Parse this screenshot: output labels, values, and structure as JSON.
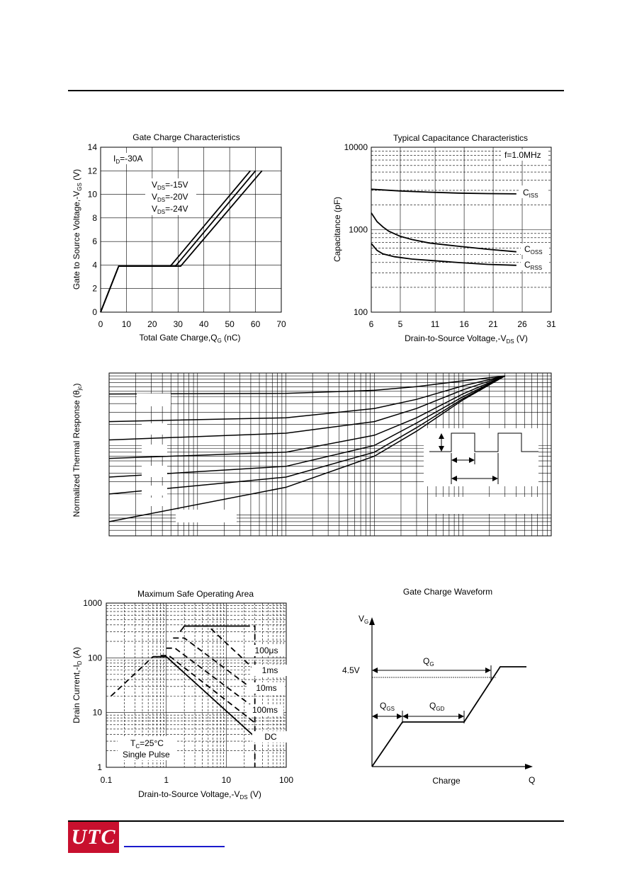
{
  "chart_data": [
    {
      "type": "line",
      "title": "Gate Charge Characteristics",
      "xlabel": "Total Gate Charge,Q",
      "xlabel_sub": "G",
      "xlabel_tail": " (nC)",
      "ylabel": "Gate to Source Voltage,-V",
      "ylabel_sub": "GS",
      "ylabel_tail": " (V)",
      "xlim": [
        0,
        70
      ],
      "ylim": [
        0,
        14
      ],
      "x_ticks": [
        "0",
        "10",
        "20",
        "30",
        "40",
        "50",
        "60",
        "70"
      ],
      "y_ticks": [
        "0",
        "2",
        "4",
        "6",
        "8",
        "10",
        "12",
        "14"
      ],
      "annotations": [
        {
          "main": "I",
          "sub": "D",
          "tail": "=-30A"
        },
        {
          "main": "V",
          "sub": "DS",
          "tail": "=-15V"
        },
        {
          "main": "V",
          "sub": "DS",
          "tail": "=-20V"
        },
        {
          "main": "V",
          "sub": "DS",
          "tail": "=-24V"
        }
      ],
      "series": [
        {
          "x": [
            0,
            7,
            27,
            58
          ],
          "y": [
            0,
            3.9,
            3.9,
            12
          ]
        },
        {
          "x": [
            0,
            7,
            29,
            60
          ],
          "y": [
            0,
            3.9,
            3.9,
            12
          ]
        },
        {
          "x": [
            0,
            7,
            31,
            62.5
          ],
          "y": [
            0,
            3.9,
            3.9,
            12
          ]
        }
      ]
    },
    {
      "type": "line",
      "title": "Typical Capacitance  Characteristics",
      "xlabel": "Drain-to-Source Voltage,-V",
      "xlabel_sub": "DS",
      "xlabel_tail": " (V)",
      "ylabel": "Capacitance (pF)",
      "y_scale": "log",
      "xlim": [
        0,
        31
      ],
      "ylim": [
        100,
        10000
      ],
      "x_ticks": [
        "6",
        "5",
        "11",
        "16",
        "21",
        "26",
        "31"
      ],
      "y_ticks": [
        "100",
        "1000",
        "10000"
      ],
      "annotation": "f=1.0MHz",
      "series": [
        {
          "name_main": "C",
          "name_sub": "ISS",
          "x": [
            0,
            5,
            10,
            15,
            20,
            25
          ],
          "y": [
            3100,
            2950,
            2850,
            2780,
            2740,
            2720
          ]
        },
        {
          "name_main": "C",
          "name_sub": "OSS",
          "x": [
            0,
            1,
            2,
            3,
            5,
            7,
            10,
            15,
            20,
            25
          ],
          "y": [
            1600,
            1250,
            1080,
            960,
            830,
            760,
            690,
            630,
            580,
            540
          ]
        },
        {
          "name_main": "C",
          "name_sub": "RSS",
          "x": [
            0,
            1,
            2,
            4,
            7,
            10,
            15,
            20,
            25
          ],
          "y": [
            680,
            560,
            510,
            470,
            440,
            425,
            400,
            380,
            370
          ]
        }
      ]
    },
    {
      "type": "line",
      "ylabel": "Normalized Thermal Response (θ",
      "ylabel_sub": "jc",
      "ylabel_tail": ")",
      "x_scale": "log",
      "y_scale": "log",
      "series": [
        {
          "x": [
            1e-05,
            0.001,
            0.01,
            0.03,
            0.1,
            0.3
          ],
          "y": [
            0.55,
            0.56,
            0.62,
            0.7,
            0.85,
            1.0
          ]
        },
        {
          "x": [
            1e-05,
            0.001,
            0.01,
            0.03,
            0.1,
            0.3
          ],
          "y": [
            0.22,
            0.25,
            0.34,
            0.46,
            0.72,
            1.0
          ]
        },
        {
          "x": [
            1e-05,
            0.001,
            0.01,
            0.03,
            0.1,
            0.3
          ],
          "y": [
            0.12,
            0.15,
            0.22,
            0.34,
            0.63,
            1.0
          ]
        },
        {
          "x": [
            1e-05,
            0.001,
            0.01,
            0.03,
            0.1,
            0.3
          ],
          "y": [
            0.065,
            0.08,
            0.14,
            0.25,
            0.55,
            1.0
          ]
        },
        {
          "x": [
            1e-05,
            0.001,
            0.01,
            0.03,
            0.1,
            0.3
          ],
          "y": [
            0.035,
            0.05,
            0.1,
            0.21,
            0.5,
            1.0
          ]
        },
        {
          "x": [
            1e-05,
            0.001,
            0.01,
            0.03,
            0.1,
            0.3
          ],
          "y": [
            0.02,
            0.035,
            0.08,
            0.18,
            0.47,
            1.0
          ]
        },
        {
          "x": [
            1e-05,
            0.001,
            0.01,
            0.03,
            0.1,
            0.3
          ],
          "y": [
            0.008,
            0.025,
            0.07,
            0.16,
            0.45,
            1.0
          ]
        }
      ]
    },
    {
      "type": "line",
      "title": "Maximum Safe Operating Area",
      "xlabel": "Drain-to-Source Voltage,-V",
      "xlabel_sub": "DS",
      "xlabel_tail": " (V)",
      "ylabel": "Drain Current,-I",
      "ylabel_sub": "D",
      "ylabel_tail": " (A)",
      "x_scale": "log",
      "y_scale": "log",
      "xlim": [
        0.1,
        100
      ],
      "ylim": [
        1,
        1000
      ],
      "x_ticks": [
        "0.1",
        "1",
        "10",
        "100"
      ],
      "y_ticks": [
        "1",
        "10",
        "100",
        "1000"
      ],
      "annotation_main": "T",
      "annotation_sub": "C",
      "annotation_tail": "=25°C",
      "annotation2": "Single Pulse",
      "series": [
        {
          "name": "100μs",
          "dashed": true,
          "x": [
            2,
            5,
            30
          ],
          "y": [
            380,
            380,
            60
          ]
        },
        {
          "name": "1ms",
          "dashed": true,
          "x": [
            1.3,
            2,
            30
          ],
          "y": [
            230,
            230,
            25
          ]
        },
        {
          "name": "10ms",
          "dashed": true,
          "x": [
            1,
            1.4,
            30
          ],
          "y": [
            150,
            150,
            12
          ]
        },
        {
          "name": "100ms",
          "dashed": true,
          "x": [
            0.8,
            1.1,
            30
          ],
          "y": [
            110,
            110,
            6.5
          ]
        },
        {
          "name": "DC",
          "dashed": false,
          "x": [
            0.6,
            1,
            30
          ],
          "y": [
            105,
            105,
            3.6
          ]
        }
      ],
      "limit_lines": [
        {
          "dashed": true,
          "x": [
            0.12,
            0.6
          ],
          "y": [
            20,
            105
          ]
        },
        {
          "dashed": false,
          "x": [
            1.7,
            2,
            20
          ],
          "y": [
            300,
            380,
            380
          ]
        },
        {
          "dashed": true,
          "x": [
            20,
            30,
            30
          ],
          "y": [
            380,
            380,
            1
          ]
        }
      ]
    }
  ],
  "waveform": {
    "title": "Gate Charge Waveform",
    "y_axis_main": "V",
    "y_axis_sub": "G",
    "x_axis": "Q",
    "x_label": "Charge",
    "level": "4.5V",
    "qg_main": "Q",
    "qg_sub": "G",
    "qgs_main": "Q",
    "qgs_sub": "GS",
    "qgd_main": "Q",
    "qgd_sub": "GD"
  }
}
